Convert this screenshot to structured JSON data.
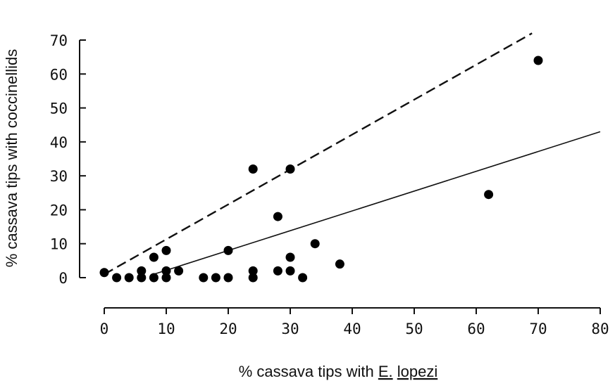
{
  "chart_data": {
    "type": "scatter",
    "title": "",
    "ylabel": "% cassava tips with coccinellids",
    "xlabel": {
      "prefix": "% cassava tips with ",
      "genus": "E.",
      "species": "lopezi"
    },
    "xlim": [
      0,
      80
    ],
    "ylim": [
      0,
      70
    ],
    "x_ticks": [
      0,
      10,
      20,
      30,
      40,
      50,
      60,
      70,
      80
    ],
    "y_ticks": [
      0,
      10,
      20,
      30,
      40,
      50,
      60,
      70
    ],
    "grid": false,
    "points": [
      {
        "x": 0,
        "y": 1.5
      },
      {
        "x": 2,
        "y": 0
      },
      {
        "x": 4,
        "y": 0
      },
      {
        "x": 6,
        "y": 0
      },
      {
        "x": 6,
        "y": 2
      },
      {
        "x": 8,
        "y": 0
      },
      {
        "x": 8,
        "y": 6
      },
      {
        "x": 10,
        "y": 0
      },
      {
        "x": 10,
        "y": 2
      },
      {
        "x": 10,
        "y": 8
      },
      {
        "x": 12,
        "y": 2
      },
      {
        "x": 16,
        "y": 0
      },
      {
        "x": 18,
        "y": 0
      },
      {
        "x": 20,
        "y": 0
      },
      {
        "x": 20,
        "y": 8
      },
      {
        "x": 24,
        "y": 0
      },
      {
        "x": 24,
        "y": 2
      },
      {
        "x": 24,
        "y": 32
      },
      {
        "x": 28,
        "y": 2
      },
      {
        "x": 28,
        "y": 18
      },
      {
        "x": 30,
        "y": 2
      },
      {
        "x": 30,
        "y": 6
      },
      {
        "x": 30,
        "y": 32
      },
      {
        "x": 32,
        "y": 0
      },
      {
        "x": 34,
        "y": 10
      },
      {
        "x": 38,
        "y": 4
      },
      {
        "x": 62,
        "y": 24.5
      },
      {
        "x": 70,
        "y": 64
      }
    ],
    "lines": [
      {
        "style": "solid",
        "x": [
          8,
          80
        ],
        "y": [
          1,
          43
        ]
      },
      {
        "style": "dashed",
        "x": [
          0,
          69
        ],
        "y": [
          1,
          72
        ]
      }
    ]
  }
}
